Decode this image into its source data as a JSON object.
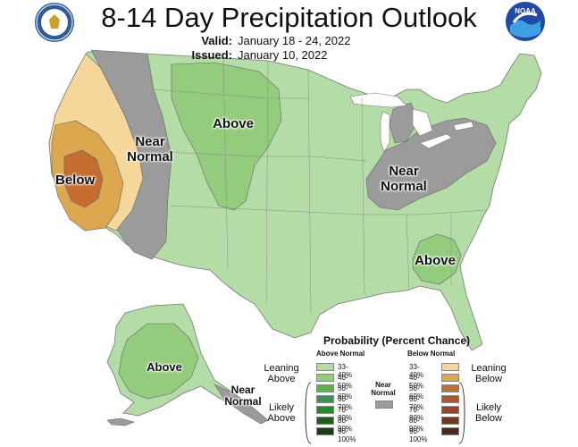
{
  "title": "8-14 Day Precipitation Outlook",
  "valid_label": "Valid:",
  "valid_value": "January 18 - 24, 2022",
  "issued_label": "Issued:",
  "issued_value": "January 10, 2022",
  "map_labels": {
    "below_west": "Below",
    "near_normal_west": "Near Normal",
    "above_north": "Above",
    "near_normal_midwest": "Near Normal",
    "above_southeast": "Above",
    "above_alaska": "Above",
    "near_normal_alaska": "Near Normal"
  },
  "legend": {
    "title": "Probability (Percent Chance)",
    "above_header": "Above Normal",
    "below_header": "Below Normal",
    "near_label": "Near Normal",
    "leaning_above": "Leaning Above",
    "likely_above": "Likely Above",
    "leaning_below": "Leaning Below",
    "likely_below": "Likely Below",
    "ranges": [
      "33-40%",
      "40-50%",
      "50-60%",
      "60-70%",
      "70-80%",
      "80-90%",
      "90-100%"
    ],
    "above_colors": [
      "#b3dca7",
      "#94cc7e",
      "#5ab348",
      "#3f8f5c",
      "#2a8a2a",
      "#1f5d1f",
      "#1b3d14"
    ],
    "below_colors": [
      "#f5d69b",
      "#dba84f",
      "#c56c2f",
      "#b5522f",
      "#a0402c",
      "#7a3316",
      "#4a2a16"
    ],
    "near_color": "#9b9b9b"
  },
  "colors": {
    "above_33_40": "#b3dca7",
    "above_40_50": "#94cc7e",
    "below_33_40": "#f5d69b",
    "below_40_50": "#dba84f",
    "below_50_60": "#c56c2f",
    "near_normal": "#9b9b9b",
    "water": "#ffffff"
  }
}
